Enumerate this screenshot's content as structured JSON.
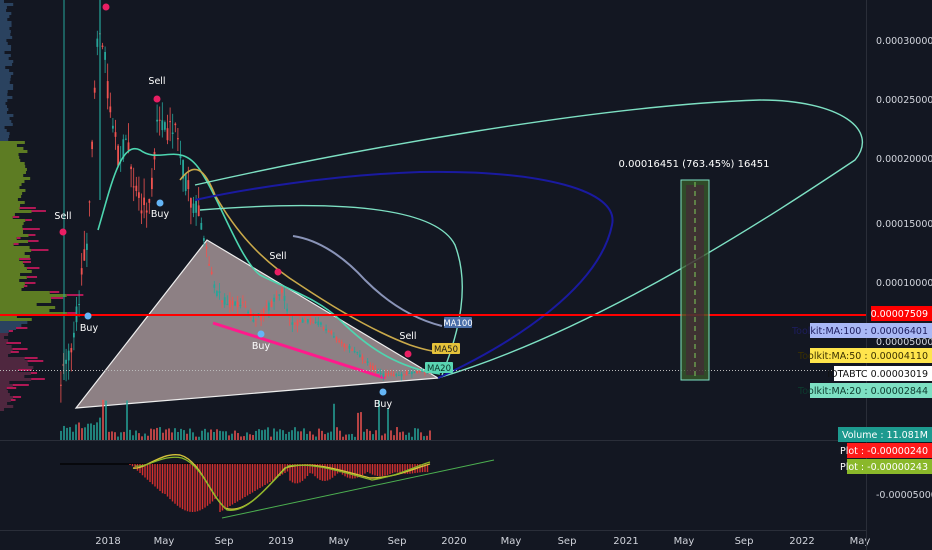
{
  "symbol": "IOTABTC",
  "chart_data": {
    "type": "line",
    "title": "",
    "xlabel": "",
    "ylabel": "",
    "x_ticks": [
      "2018",
      "May",
      "Sep",
      "2019",
      "May",
      "Sep",
      "2020",
      "May",
      "Sep",
      "2021",
      "May",
      "Sep",
      "2022",
      "May"
    ],
    "y_ticks": [
      "0.00030000",
      "0.00025000",
      "0.00020000",
      "0.00015000",
      "0.00010000",
      "0.00005000"
    ],
    "ylim": [
      0.0,
      0.00034
    ],
    "osc_ticks": [
      "-0.00005000"
    ],
    "grid": false,
    "price_labels": [
      {
        "text": "0.00007509",
        "value": 7.509e-05,
        "color": "#ff0000",
        "text_color": "#ffffff"
      },
      {
        "text": "Toolkit:MA:100 : 0.00006401",
        "value": 6.401e-05,
        "color": "#a9b8f5",
        "text_color": "#1d1d5e"
      },
      {
        "text": "Toolkit:MA:50 : 0.00004110",
        "value": 4.11e-05,
        "color": "#ffe54c",
        "text_color": "#3a3000"
      },
      {
        "text": "IOTABTC 0.00003019",
        "value": 3.019e-05,
        "color": "#ffffff",
        "text_color": "#111111"
      },
      {
        "text": "Toolkit:MA:20 : 0.00002844",
        "value": 2.844e-05,
        "color": "#7de0c3",
        "text_color": "#0d3b2e"
      }
    ],
    "panel_labels": [
      {
        "text": "Volume : 11.081M",
        "color": "#1d9a8f",
        "text_color": "#ffffff"
      },
      {
        "text": "Plot : -0.00000240",
        "color": "#ff1a1a",
        "text_color": "#ffffff"
      },
      {
        "text": "Plot : -0.00000243",
        "color": "#8ab82a",
        "text_color": "#ffffff"
      }
    ],
    "measure_label": "0.00016451 (763.45%) 16451",
    "markers": [
      {
        "text": "Sell",
        "kind": "sell"
      },
      {
        "text": "Sell",
        "kind": "sell"
      },
      {
        "text": "Sell",
        "kind": "sell"
      },
      {
        "text": "Sell",
        "kind": "sell"
      },
      {
        "text": "Buy",
        "kind": "buy"
      },
      {
        "text": "Buy",
        "kind": "buy"
      },
      {
        "text": "Buy",
        "kind": "buy"
      },
      {
        "text": "Buy",
        "kind": "buy"
      }
    ],
    "ma_tags": [
      "MA100",
      "MA50",
      "MA20"
    ],
    "horizontal_line": {
      "value": 7.509e-05,
      "color": "#ff0000"
    },
    "colors": {
      "background": "#131722",
      "up": "#26a69a",
      "down": "#ef5350",
      "ma20": "#4dd6b0",
      "ma50": "#c9a94a",
      "ma100": "#8a94b8",
      "ellipse_cyan": "#7de0c3",
      "ellipse_navy": "#1a1aa0",
      "wedge_line": "#ff1a8c",
      "triangle_fill": "#f2d7d5"
    }
  }
}
